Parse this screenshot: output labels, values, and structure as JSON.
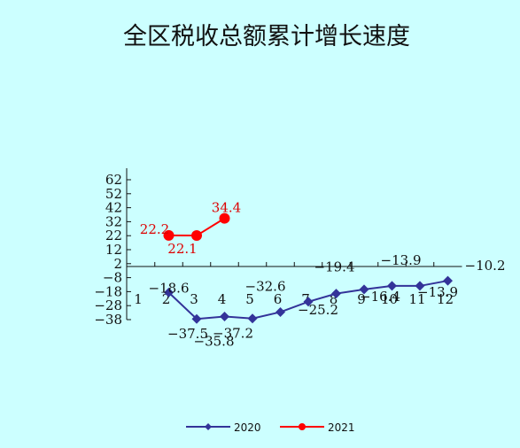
{
  "chart_data": {
    "type": "line",
    "title": "全区税收总额累计增长速度",
    "xlabel": "",
    "ylabel": "",
    "categories": [
      "1",
      "2",
      "3",
      "4",
      "5",
      "6",
      "7",
      "8",
      "9",
      "10",
      "11",
      "12"
    ],
    "yticks": [
      62,
      52,
      42,
      32,
      22,
      12,
      2,
      -8,
      -18,
      -28,
      -38
    ],
    "ylim": [
      -38,
      70
    ],
    "grid": false,
    "legend_position": "bottom",
    "series": [
      {
        "name": "2020",
        "color": "#333399",
        "marker": "diamond",
        "values": [
          null,
          -18.6,
          -37.5,
          -35.8,
          -37.2,
          -32.6,
          -25.2,
          -19.4,
          -16.4,
          -13.9,
          -13.9,
          -10.2
        ],
        "labels": [
          null,
          "-18.6",
          "-37.5",
          "-35.8",
          "-37.2",
          "-32.6",
          "-25.2",
          "-19.4",
          "-16.4",
          "-13.9",
          "-13.9",
          "-10.2"
        ]
      },
      {
        "name": "2021",
        "color": "#ff0000",
        "marker": "circle",
        "values": [
          null,
          22.2,
          22.1,
          34.4,
          null,
          null,
          null,
          null,
          null,
          null,
          null,
          null
        ],
        "labels": [
          null,
          "22.2",
          "22.1",
          "34.4",
          null,
          null,
          null,
          null,
          null,
          null,
          null,
          null
        ]
      }
    ]
  }
}
